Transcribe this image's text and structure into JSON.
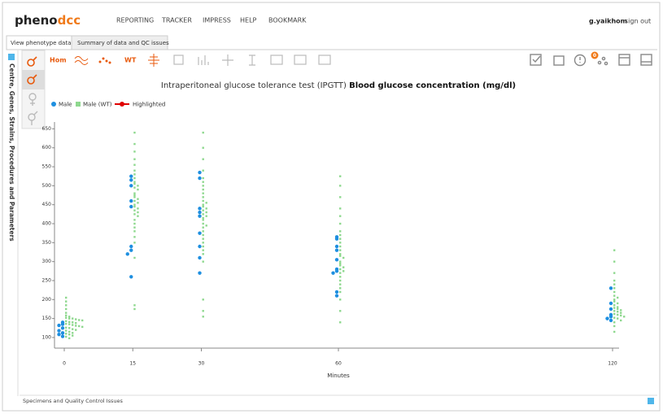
{
  "header": {
    "logo_a": "pheno",
    "logo_b": "dcc",
    "nav": [
      "REPORTING",
      "TRACKER",
      "IMPRESS",
      "HELP",
      "BOOKMARK"
    ],
    "user": "g.yaikhom",
    "signout": "sign out"
  },
  "tabs": [
    "View phenotype data",
    "Summary of data and QC issues"
  ],
  "sidebar_label": "Centre, Genes, Strains, Procedures and Parameters",
  "toolbar": {
    "hom": "Hom",
    "wt": "WT",
    "badge": "0"
  },
  "footer": "Specimens and Quality Control Issues",
  "chart_data": {
    "type": "scatter",
    "title_prefix": "Intraperitoneal glucose tolerance test (IPGTT)",
    "title": "Blood glucose concentration (mg/dl)",
    "x_label": "Minutes",
    "x": [
      0,
      15,
      30,
      60,
      120
    ],
    "xlim": [
      0,
      120
    ],
    "xticks": [
      0,
      15,
      30,
      60,
      120
    ],
    "ylim": [
      72,
      668
    ],
    "yticks": [
      100,
      150,
      200,
      250,
      300,
      350,
      400,
      450,
      500,
      550,
      600,
      650
    ],
    "highlight": {
      "name": "Highlighted",
      "color": "#e00000"
    },
    "series": [
      {
        "name": "Male",
        "color": "#1e8fe0",
        "values": [
          [
            140,
            135,
            132,
            125,
            118,
            112,
            108,
            103
          ],
          [
            525,
            515,
            500,
            460,
            445,
            340,
            330,
            320,
            260
          ],
          [
            535,
            520,
            440,
            430,
            420,
            375,
            340,
            310,
            270
          ],
          [
            365,
            360,
            340,
            330,
            305,
            280,
            275,
            270,
            220,
            210
          ],
          [
            230,
            190,
            175,
            160,
            155,
            150,
            145
          ]
        ]
      },
      {
        "name": "Male (WT)",
        "color": "#8ed88e",
        "values": [
          [
            205,
            195,
            185,
            175,
            165,
            158,
            155,
            152,
            150,
            150,
            148,
            146,
            145,
            143,
            141,
            140,
            138,
            136,
            135,
            133,
            131,
            130,
            128,
            126,
            125,
            122,
            120,
            118,
            115,
            112,
            110,
            108,
            105,
            102,
            98
          ],
          [
            640,
            610,
            590,
            570,
            555,
            540,
            530,
            520,
            510,
            505,
            500,
            495,
            490,
            480,
            475,
            470,
            465,
            460,
            455,
            450,
            445,
            440,
            435,
            430,
            425,
            420,
            410,
            400,
            390,
            380,
            365,
            350,
            310,
            185,
            175
          ],
          [
            640,
            600,
            570,
            540,
            520,
            510,
            500,
            490,
            480,
            470,
            460,
            455,
            450,
            445,
            440,
            435,
            430,
            425,
            420,
            415,
            410,
            400,
            395,
            390,
            380,
            370,
            360,
            350,
            340,
            330,
            320,
            300,
            200,
            170,
            155
          ],
          [
            525,
            500,
            470,
            440,
            420,
            400,
            380,
            370,
            360,
            350,
            340,
            330,
            320,
            315,
            310,
            300,
            295,
            290,
            285,
            280,
            275,
            270,
            260,
            250,
            240,
            230,
            220,
            200,
            170,
            140
          ],
          [
            330,
            300,
            270,
            250,
            240,
            230,
            220,
            210,
            205,
            200,
            195,
            190,
            185,
            180,
            178,
            175,
            172,
            170,
            168,
            165,
            162,
            160,
            158,
            155,
            152,
            150,
            145,
            140,
            130,
            115
          ]
        ]
      }
    ]
  }
}
